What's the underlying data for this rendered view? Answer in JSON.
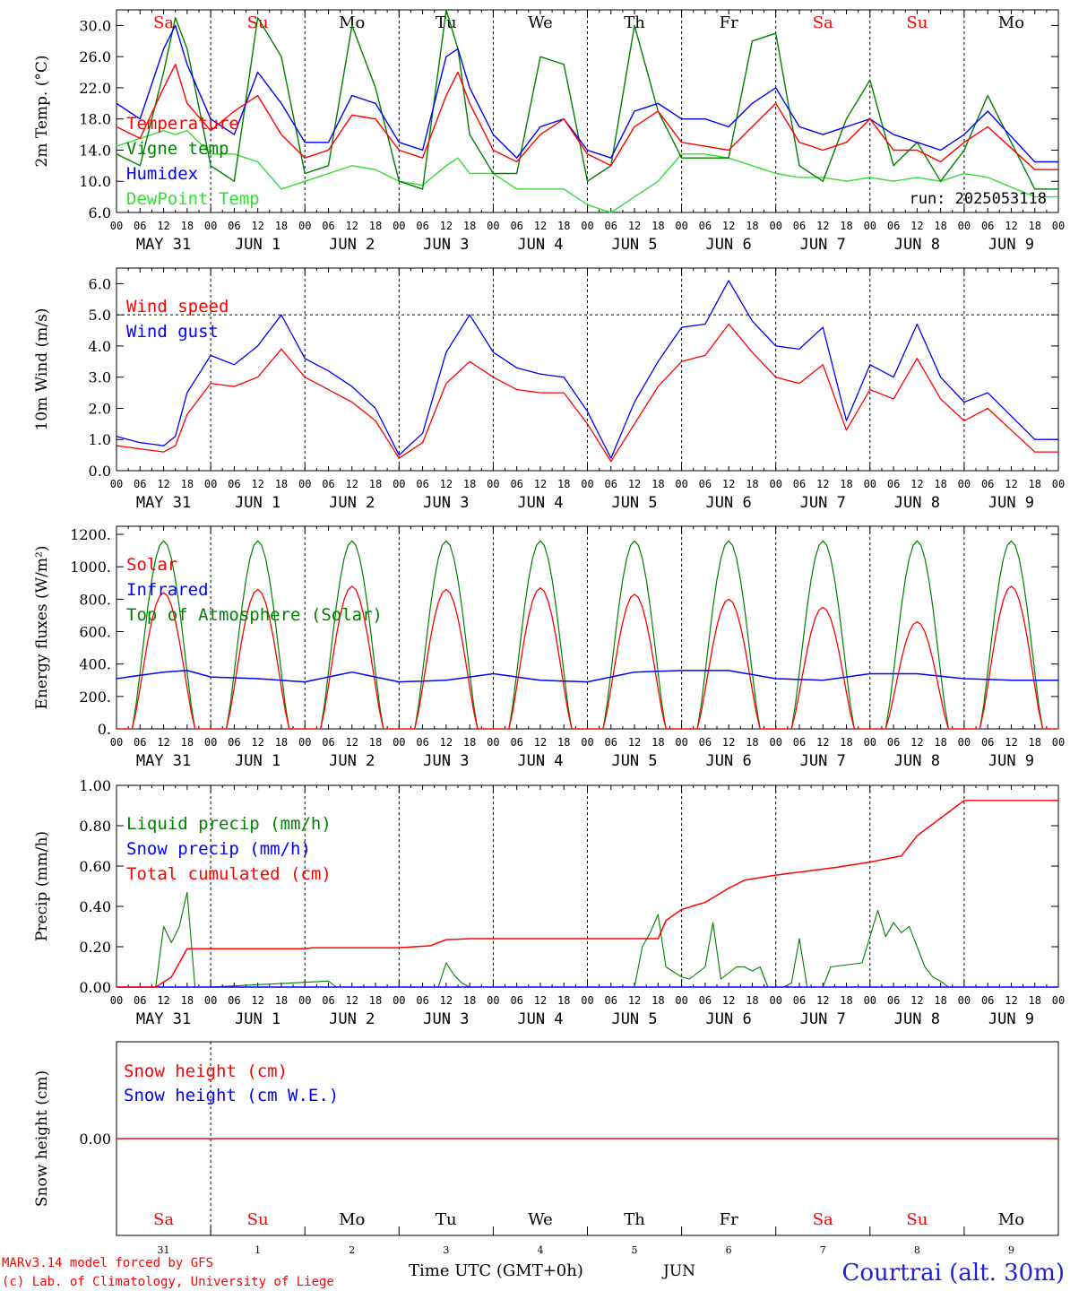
{
  "run_label": "run: 2025053118",
  "footer": {
    "credit1": "MARv3.14 model forced by GFS",
    "credit2": "(c) Lab. of Climatology, University of Liege",
    "xaxis_title": "Time UTC (GMT+0h)",
    "month_label": "JUN",
    "station": "Courtrai (alt. 30m)"
  },
  "days": {
    "names": [
      "Sa",
      "Su",
      "Mo",
      "Tu",
      "We",
      "Th",
      "Fr",
      "Sa",
      "Su",
      "Mo"
    ],
    "weekend_flags": [
      true,
      true,
      false,
      false,
      false,
      false,
      false,
      true,
      true,
      false
    ],
    "date_labels": [
      "MAY 31",
      "JUN  1",
      "JUN  2",
      "JUN  3",
      "JUN  4",
      "JUN  5",
      "JUN  6",
      "JUN  7",
      "JUN  8",
      "JUN  9"
    ],
    "day_numbers": [
      "31",
      "1",
      "2",
      "3",
      "4",
      "5",
      "6",
      "7",
      "8",
      "9"
    ],
    "hour_ticks": [
      "00",
      "06",
      "12",
      "18"
    ],
    "end_tick": "00"
  },
  "colors": {
    "red": "#ff0000",
    "green": "#008000",
    "blue": "#0000ff",
    "lightgreen": "#33dd33",
    "axis": "#000000"
  },
  "chart_data": [
    {
      "type": "line",
      "ylabel": "2m Temp. (°C)",
      "ylim": [
        6,
        32
      ],
      "yticks": [
        6,
        10,
        14,
        18,
        22,
        26,
        30
      ],
      "ytick_labels": [
        "6.0",
        "10.0",
        "14.0",
        "18.0",
        "22.0",
        "26.0",
        "30.0"
      ],
      "x_hours": [
        0,
        6,
        12,
        15,
        18,
        24,
        30,
        36,
        42,
        48,
        54,
        60,
        66,
        72,
        78,
        84,
        87,
        90,
        96,
        102,
        108,
        114,
        120,
        126,
        132,
        138,
        144,
        150,
        156,
        162,
        168,
        174,
        180,
        186,
        192,
        198,
        204,
        210,
        216,
        222,
        234
      ],
      "series": [
        {
          "name": "Temperature",
          "color": "red",
          "values": [
            17,
            15.5,
            22,
            25,
            20,
            16.5,
            19,
            21,
            16,
            13,
            14,
            18.5,
            18,
            14,
            13,
            21,
            24,
            20,
            14,
            12.5,
            16,
            18,
            13.5,
            12,
            17,
            19,
            15,
            14.5,
            14,
            17,
            20,
            15,
            14,
            15,
            18,
            14,
            14,
            12.5,
            15,
            17,
            11.5
          ]
        },
        {
          "name": "Vigne temp",
          "color": "green",
          "values": [
            13.5,
            12,
            24,
            31,
            27,
            12,
            10,
            31,
            26,
            11,
            12,
            30,
            22,
            10,
            9,
            32,
            27,
            16,
            11,
            11,
            26,
            25,
            10,
            12,
            30,
            19,
            13,
            13,
            13,
            28,
            29,
            12,
            10,
            18,
            23,
            12,
            15,
            10,
            14,
            21,
            9
          ]
        },
        {
          "name": "Humidex",
          "color": "blue",
          "values": [
            20,
            18,
            27,
            30,
            25,
            18,
            16,
            24,
            20,
            15,
            15,
            21,
            20,
            15,
            14,
            26,
            27,
            22,
            16,
            13,
            17,
            18,
            14,
            13,
            19,
            20,
            18,
            18,
            17,
            20,
            22,
            17,
            16,
            17,
            18,
            16,
            15,
            14,
            16,
            19,
            12.5
          ]
        },
        {
          "name": "DewPoint Temp",
          "color": "lightgreen",
          "values": [
            14.5,
            15.5,
            16.5,
            16,
            16.5,
            13.5,
            13.5,
            12.5,
            9,
            10,
            11,
            12,
            11.5,
            10,
            9.5,
            12,
            13,
            11,
            11,
            9,
            9,
            9,
            7,
            6,
            8,
            10,
            13.5,
            13.5,
            13,
            12,
            11,
            10.5,
            10.5,
            10,
            10.5,
            10,
            10.5,
            10,
            11,
            10.5,
            8
          ]
        }
      ]
    },
    {
      "type": "line",
      "ylabel": "10m Wind (m/s)",
      "ylim": [
        0,
        6.5
      ],
      "yticks": [
        0,
        1,
        2,
        3,
        4,
        5,
        6
      ],
      "ytick_labels": [
        "0.0",
        "1.0",
        "2.0",
        "3.0",
        "4.0",
        "5.0",
        "6.0"
      ],
      "reference_line": 5,
      "x_hours": [
        0,
        6,
        12,
        15,
        18,
        24,
        30,
        36,
        42,
        48,
        54,
        60,
        66,
        72,
        78,
        84,
        90,
        96,
        102,
        108,
        114,
        120,
        126,
        132,
        138,
        144,
        150,
        156,
        162,
        168,
        174,
        180,
        186,
        192,
        198,
        204,
        210,
        216,
        222,
        234
      ],
      "series": [
        {
          "name": "Wind speed",
          "color": "red",
          "values": [
            0.8,
            0.7,
            0.6,
            0.8,
            1.8,
            2.8,
            2.7,
            3.0,
            3.9,
            3.0,
            2.6,
            2.2,
            1.6,
            0.4,
            0.9,
            2.8,
            3.5,
            3.0,
            2.6,
            2.5,
            2.5,
            1.5,
            0.3,
            1.5,
            2.7,
            3.5,
            3.7,
            4.7,
            3.8,
            3.0,
            2.8,
            3.4,
            1.3,
            2.6,
            2.3,
            3.6,
            2.3,
            1.6,
            2.0,
            0.6
          ]
        },
        {
          "name": "Wind gust",
          "color": "blue",
          "values": [
            1.1,
            0.9,
            0.8,
            1.1,
            2.5,
            3.7,
            3.4,
            4.0,
            5.0,
            3.6,
            3.2,
            2.7,
            2.0,
            0.5,
            1.2,
            3.8,
            5.0,
            3.8,
            3.3,
            3.1,
            3.0,
            1.9,
            0.4,
            2.2,
            3.5,
            4.6,
            4.7,
            6.1,
            4.8,
            4.0,
            3.9,
            4.6,
            1.6,
            3.4,
            3.0,
            4.7,
            3.0,
            2.2,
            2.5,
            1.0
          ]
        }
      ]
    },
    {
      "type": "line",
      "ylabel": "Energy fluxes (W/m²)",
      "ylim": [
        0,
        1250
      ],
      "yticks": [
        0,
        200,
        400,
        600,
        800,
        1000,
        1200
      ],
      "ytick_labels": [
        "0.",
        "200.",
        "400.",
        "600.",
        "800.",
        "1000.",
        "1200."
      ],
      "series": [
        {
          "name": "Solar",
          "color": "red",
          "daily_peaks": [
            840,
            860,
            880,
            860,
            870,
            830,
            800,
            750,
            660,
            880
          ]
        },
        {
          "name": "Infrared",
          "color": "blue",
          "x_hours": [
            0,
            12,
            18,
            24,
            36,
            48,
            60,
            72,
            84,
            96,
            108,
            120,
            132,
            144,
            156,
            168,
            180,
            192,
            204,
            216,
            228,
            240
          ],
          "values": [
            310,
            350,
            360,
            320,
            310,
            290,
            350,
            290,
            300,
            340,
            300,
            290,
            350,
            360,
            360,
            310,
            300,
            340,
            340,
            310,
            300,
            300
          ]
        },
        {
          "name": "Top of Atmosphere (Solar)",
          "color": "green",
          "daily_peak": 1160
        }
      ]
    },
    {
      "type": "line",
      "ylabel": "Precip (mm/h)",
      "ylim": [
        0,
        1.0
      ],
      "yticks": [
        0,
        0.2,
        0.4,
        0.6,
        0.8,
        1.0
      ],
      "ytick_labels": [
        "0.00",
        "0.20",
        "0.40",
        "0.60",
        "0.80",
        "1.00"
      ],
      "series": [
        {
          "name": "Liquid precip (mm/h)",
          "color": "green",
          "x_hours": [
            0,
            10,
            12,
            14,
            16,
            18,
            20,
            24,
            54,
            56,
            58,
            82,
            84,
            86,
            88,
            90,
            132,
            134,
            136,
            138,
            140,
            144,
            146,
            150,
            152,
            154,
            158,
            160,
            162,
            164,
            166,
            170,
            172,
            174,
            176,
            178,
            180,
            182,
            190,
            194,
            196,
            198,
            200,
            202,
            204,
            206,
            208,
            210,
            212,
            214,
            216,
            240
          ],
          "values": [
            0,
            0,
            0.3,
            0.22,
            0.3,
            0.47,
            0,
            0,
            0.03,
            0,
            0,
            0,
            0.12,
            0.06,
            0.02,
            0,
            0,
            0.2,
            0.27,
            0.36,
            0.1,
            0.05,
            0.04,
            0.1,
            0.32,
            0.04,
            0.1,
            0.1,
            0.08,
            0.1,
            0,
            0,
            0.02,
            0.24,
            0,
            0,
            0,
            0.1,
            0.12,
            0.38,
            0.25,
            0.32,
            0.27,
            0.3,
            0.2,
            0.1,
            0.05,
            0.03,
            0,
            0,
            0,
            0
          ]
        },
        {
          "name": "Snow precip (mm/h)",
          "color": "blue",
          "values_constant": 0
        },
        {
          "name": "Total cumulated (cm)",
          "color": "red",
          "x_hours": [
            0,
            10,
            14,
            18,
            24,
            48,
            50,
            70,
            72,
            80,
            84,
            90,
            96,
            120,
            138,
            140,
            144,
            150,
            156,
            160,
            168,
            184,
            192,
            200,
            204,
            216,
            240
          ],
          "values": [
            0,
            0,
            0.05,
            0.19,
            0.19,
            0.19,
            0.195,
            0.195,
            0.195,
            0.205,
            0.235,
            0.24,
            0.24,
            0.24,
            0.24,
            0.33,
            0.385,
            0.42,
            0.49,
            0.53,
            0.555,
            0.595,
            0.62,
            0.65,
            0.75,
            0.925,
            0.925
          ]
        }
      ]
    },
    {
      "type": "line",
      "ylabel": "Snow height (cm)",
      "ytick_labels": [
        "0.00"
      ],
      "series": [
        {
          "name": "Snow height (cm)",
          "color": "red",
          "values_constant": 0
        },
        {
          "name": "Snow height (cm W.E.)",
          "color": "blue",
          "values_constant": 0
        }
      ]
    }
  ]
}
